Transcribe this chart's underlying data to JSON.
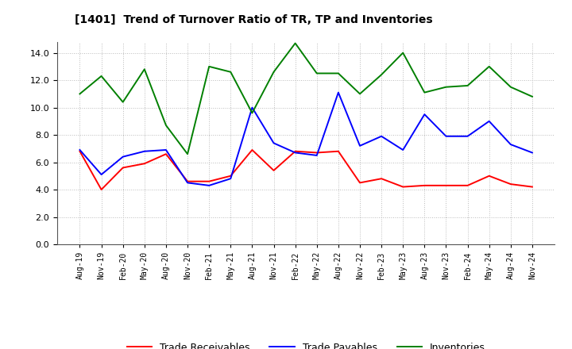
{
  "title": "[1401]  Trend of Turnover Ratio of TR, TP and Inventories",
  "x_labels": [
    "Aug-19",
    "Nov-19",
    "Feb-20",
    "May-20",
    "Aug-20",
    "Nov-20",
    "Feb-21",
    "May-21",
    "Aug-21",
    "Nov-21",
    "Feb-22",
    "May-22",
    "Aug-22",
    "Nov-22",
    "Feb-23",
    "May-23",
    "Aug-23",
    "Nov-23",
    "Feb-24",
    "May-24",
    "Aug-24",
    "Nov-24"
  ],
  "trade_receivables": [
    6.8,
    4.0,
    5.6,
    5.9,
    6.6,
    4.6,
    4.6,
    5.0,
    6.9,
    5.4,
    6.8,
    6.7,
    6.8,
    4.5,
    4.8,
    4.2,
    4.3,
    4.3,
    4.3,
    5.0,
    4.4,
    4.2
  ],
  "trade_payables": [
    6.9,
    5.1,
    6.4,
    6.8,
    6.9,
    4.5,
    4.3,
    4.8,
    10.0,
    7.4,
    6.7,
    6.5,
    11.1,
    7.2,
    7.9,
    6.9,
    9.5,
    7.9,
    7.9,
    9.0,
    7.3,
    6.7
  ],
  "inventories": [
    11.0,
    12.3,
    10.4,
    12.8,
    8.7,
    6.6,
    13.0,
    12.6,
    9.6,
    12.6,
    14.7,
    12.5,
    12.5,
    11.0,
    12.4,
    14.0,
    11.1,
    11.5,
    11.6,
    13.0,
    11.5,
    10.8
  ],
  "ylim": [
    0.0,
    14.8
  ],
  "yticks": [
    0.0,
    2.0,
    4.0,
    6.0,
    8.0,
    10.0,
    12.0,
    14.0
  ],
  "tr_color": "#ff0000",
  "tp_color": "#0000ff",
  "inv_color": "#008000",
  "legend_labels": [
    "Trade Receivables",
    "Trade Payables",
    "Inventories"
  ],
  "background_color": "#ffffff",
  "grid_color": "#bbbbbb"
}
